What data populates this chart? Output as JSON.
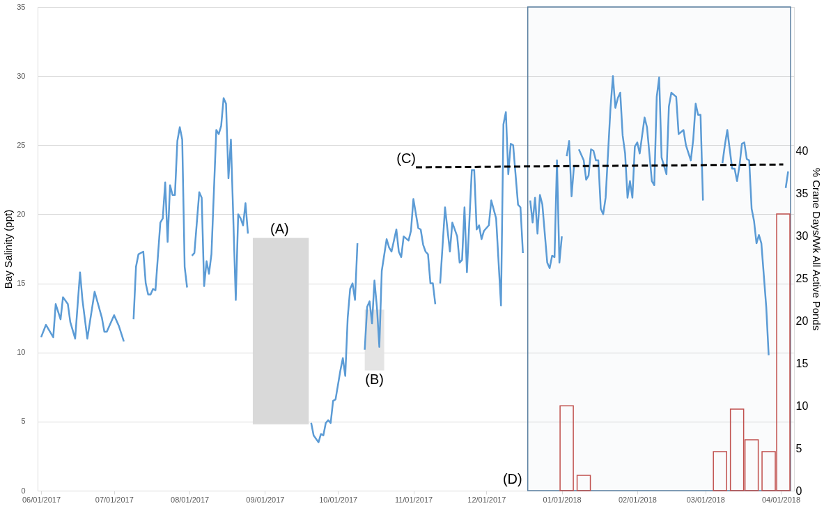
{
  "chart_data": {
    "type": "line",
    "ylabel": "Bay Salinity (ppt)",
    "y2label": "% Crane Days/Wk All Active Ponds",
    "xlim": [
      "2017-06-01",
      "2018-04-05"
    ],
    "xticks": [
      {
        "value": "2017-06-01",
        "label": "06/01/2017"
      },
      {
        "value": "2017-07-01",
        "label": "07/01/2017"
      },
      {
        "value": "2017-08-01",
        "label": "08/01/2017"
      },
      {
        "value": "2017-09-01",
        "label": "09/01/2017"
      },
      {
        "value": "2017-10-01",
        "label": "10/01/2017"
      },
      {
        "value": "2017-11-01",
        "label": "11/01/2017"
      },
      {
        "value": "2017-12-01",
        "label": "12/01/2017"
      },
      {
        "value": "2018-01-01",
        "label": "01/01/2018"
      },
      {
        "value": "2018-02-01",
        "label": "02/01/2018"
      },
      {
        "value": "2018-03-01",
        "label": "03/01/2018"
      },
      {
        "value": "2018-04-01",
        "label": "04/01/2018"
      }
    ],
    "ylim": [
      0,
      35
    ],
    "yticks": [
      0,
      5,
      10,
      15,
      20,
      25,
      30,
      35
    ],
    "y2lim": [
      0,
      57
    ],
    "y2ticks": [
      0,
      5,
      10,
      15,
      20,
      25,
      30,
      35,
      40
    ],
    "grid": "y",
    "series": [
      {
        "type": "line",
        "color": "#d9d9d9",
        "x": [
          "2017-08-27",
          "2017-09-19"
        ],
        "values": [
          null,
          null
        ],
        "lower": [
          4.8,
          4.8
        ],
        "upper": [
          18.3,
          18.3
        ]
      },
      {
        "type": "line",
        "color": "#e4e4e4",
        "x": [
          "2017-10-12",
          "2017-10-20"
        ],
        "values": [
          null,
          null
        ],
        "lower": [
          8.7,
          8.7
        ],
        "upper": [
          13.1,
          13.1
        ]
      },
      {
        "color": "#5b9bd5",
        "x": [
          "2017-06-01",
          "2017-06-03",
          "2017-06-06",
          "2017-06-07",
          "2017-06-09",
          "2017-06-10",
          "2017-06-12",
          "2017-06-13",
          "2017-06-15",
          "2017-06-17",
          "2017-06-18",
          "2017-06-20",
          "2017-06-23",
          "2017-06-26",
          "2017-06-27",
          "2017-06-28",
          "2017-07-01",
          "2017-07-03",
          "2017-07-05",
          "2017-07-07",
          "2017-07-09",
          "2017-07-10",
          "2017-07-11",
          "2017-07-13",
          "2017-07-14",
          "2017-07-15",
          "2017-07-16",
          "2017-07-17",
          "2017-07-18",
          "2017-07-20",
          "2017-07-21",
          "2017-07-22",
          "2017-07-23",
          "2017-07-24",
          "2017-07-25",
          "2017-07-26",
          "2017-07-27",
          "2017-07-28",
          "2017-07-29",
          "2017-07-30",
          "2017-07-31",
          "2017-08-01",
          "2017-08-02",
          "2017-08-03",
          "2017-08-05",
          "2017-08-06",
          "2017-08-07",
          "2017-08-08",
          "2017-08-09",
          "2017-08-10",
          "2017-08-12",
          "2017-08-13",
          "2017-08-14",
          "2017-08-15",
          "2017-08-16",
          "2017-08-17",
          "2017-08-18",
          "2017-08-20",
          "2017-08-21",
          "2017-08-22",
          "2017-08-23",
          "2017-08-24",
          "2017-08-25",
          "2017-09-01",
          "2017-09-20",
          "2017-09-21",
          "2017-09-23",
          "2017-09-24",
          "2017-09-25",
          "2017-09-26",
          "2017-09-27",
          "2017-09-28",
          "2017-09-29",
          "2017-09-30",
          "2017-10-02",
          "2017-10-03",
          "2017-10-04",
          "2017-10-05",
          "2017-10-06",
          "2017-10-07",
          "2017-10-08",
          "2017-10-09",
          "2017-10-10",
          "2017-10-12",
          "2017-10-13",
          "2017-10-14",
          "2017-10-15",
          "2017-10-16",
          "2017-10-17",
          "2017-10-18",
          "2017-10-19",
          "2017-10-21",
          "2017-10-22",
          "2017-10-23",
          "2017-10-25",
          "2017-10-26",
          "2017-10-27",
          "2017-10-28",
          "2017-10-30",
          "2017-10-31",
          "2017-11-01",
          "2017-11-03",
          "2017-11-04",
          "2017-11-05",
          "2017-11-06",
          "2017-11-07",
          "2017-11-08",
          "2017-11-09",
          "2017-11-10",
          "2017-11-11",
          "2017-11-12",
          "2017-11-14",
          "2017-11-16",
          "2017-11-17",
          "2017-11-19",
          "2017-11-20",
          "2017-11-21",
          "2017-11-22",
          "2017-11-23",
          "2017-11-25",
          "2017-11-26",
          "2017-11-27",
          "2017-11-28",
          "2017-11-29",
          "2017-11-30",
          "2017-12-02",
          "2017-12-03",
          "2017-12-05",
          "2017-12-07",
          "2017-12-08",
          "2017-12-09",
          "2017-12-10",
          "2017-12-11",
          "2017-12-12",
          "2017-12-14",
          "2017-12-15",
          "2017-12-16",
          "2017-12-17",
          "2017-12-19",
          "2017-12-20",
          "2017-12-21",
          "2017-12-22",
          "2017-12-23",
          "2017-12-24",
          "2017-12-26",
          "2017-12-27",
          "2017-12-28",
          "2017-12-29",
          "2017-12-30",
          "2017-12-31",
          "2018-01-01",
          "2018-01-02",
          "2018-01-03",
          "2018-01-04",
          "2018-01-05",
          "2018-01-06",
          "2018-01-07",
          "2018-01-08",
          "2018-01-10",
          "2018-01-11",
          "2018-01-12",
          "2018-01-13",
          "2018-01-14",
          "2018-01-15",
          "2018-01-16",
          "2018-01-17",
          "2018-01-18",
          "2018-01-19",
          "2018-01-21",
          "2018-01-22",
          "2018-01-23",
          "2018-01-24",
          "2018-01-25",
          "2018-01-26",
          "2018-01-27",
          "2018-01-28",
          "2018-01-29",
          "2018-01-30",
          "2018-01-31",
          "2018-02-01",
          "2018-02-02",
          "2018-02-04",
          "2018-02-05",
          "2018-02-07",
          "2018-02-08",
          "2018-02-09",
          "2018-02-10",
          "2018-02-11",
          "2018-02-13",
          "2018-02-14",
          "2018-02-15",
          "2018-02-17",
          "2018-02-18",
          "2018-02-20",
          "2018-02-21",
          "2018-02-23",
          "2018-02-24",
          "2018-02-25",
          "2018-02-26",
          "2018-02-27",
          "2018-02-28",
          "2018-03-04",
          "2018-03-08",
          "2018-03-09",
          "2018-03-10",
          "2018-03-12",
          "2018-03-13",
          "2018-03-14",
          "2018-03-15",
          "2018-03-16",
          "2018-03-17",
          "2018-03-18",
          "2018-03-19",
          "2018-03-20",
          "2018-03-21",
          "2018-03-22",
          "2018-03-23",
          "2018-03-24",
          "2018-03-26",
          "2018-03-27",
          "2018-03-30",
          "2018-04-03",
          "2018-04-04"
        ],
        "values": [
          11.1,
          12.0,
          11.1,
          13.5,
          12.4,
          14.0,
          13.5,
          12.2,
          11.0,
          15.8,
          13.8,
          11.0,
          14.4,
          12.5,
          11.5,
          11.5,
          12.7,
          11.9,
          10.8,
          null,
          12.4,
          16.2,
          17.1,
          17.3,
          15.0,
          14.2,
          14.2,
          14.6,
          14.5,
          19.4,
          19.7,
          22.3,
          18.0,
          22.1,
          21.4,
          21.4,
          25.3,
          26.3,
          25.4,
          16.2,
          14.7,
          null,
          17.0,
          17.2,
          21.6,
          21.2,
          14.8,
          16.6,
          15.7,
          17.1,
          26.1,
          25.8,
          26.4,
          28.4,
          28.0,
          22.6,
          25.4,
          13.8,
          20.0,
          19.7,
          19.2,
          20.8,
          18.6,
          null,
          4.9,
          4.0,
          3.5,
          4.1,
          4.0,
          4.9,
          5.1,
          4.9,
          6.5,
          6.6,
          8.7,
          9.6,
          8.3,
          12.5,
          14.6,
          15.0,
          13.8,
          17.9,
          null,
          10.2,
          13.3,
          13.7,
          12.1,
          15.2,
          13.3,
          10.4,
          15.9,
          18.2,
          17.6,
          17.3,
          18.9,
          17.3,
          16.9,
          18.4,
          18.1,
          18.8,
          21.1,
          19.0,
          18.9,
          17.8,
          17.3,
          17.1,
          15.0,
          15.0,
          13.5,
          null,
          15.0,
          20.5,
          17.3,
          19.4,
          18.4,
          16.5,
          16.7,
          20.5,
          15.8,
          23.2,
          23.2,
          18.9,
          19.2,
          18.2,
          18.8,
          19.2,
          21.0,
          19.7,
          13.4,
          26.5,
          27.4,
          22.9,
          25.1,
          25.0,
          20.7,
          20.5,
          17.2,
          null,
          21.0,
          19.4,
          21.2,
          18.6,
          21.4,
          20.7,
          16.5,
          16.1,
          17.0,
          16.9,
          23.9,
          16.5,
          18.4,
          null,
          24.2,
          25.3,
          21.3,
          23.5,
          null,
          24.7,
          23.9,
          22.5,
          22.8,
          24.7,
          24.6,
          23.9,
          23.9,
          20.4,
          20.0,
          21.2,
          27.7,
          30.0,
          27.7,
          28.4,
          28.8,
          25.7,
          24.4,
          21.2,
          22.4,
          21.2,
          24.9,
          25.2,
          24.4,
          27.0,
          26.3,
          22.4,
          22.1,
          28.5,
          29.9,
          24.1,
          22.9,
          27.8,
          28.8,
          28.5,
          25.8,
          26.1,
          25.0,
          23.9,
          25.4,
          28.0,
          27.2,
          27.2,
          21.0,
          null,
          23.7,
          25.0,
          26.1,
          23.3,
          23.3,
          22.4,
          23.5,
          25.1,
          25.2,
          24.0,
          23.9,
          20.4,
          19.5,
          17.9,
          18.5,
          17.9,
          13.3,
          9.8,
          null,
          21.9,
          23.1
        ]
      },
      {
        "type": "line",
        "color": "#000000",
        "line_style": "dashed",
        "x": [
          "2017-11-02",
          "2018-04-02"
        ],
        "values": [
          23.4,
          23.6
        ]
      },
      {
        "type": "bar",
        "axis": "y2",
        "color": "#c0504d",
        "x": [
          "2018-01-03",
          "2018-01-10",
          "2018-03-07",
          "2018-03-14",
          "2018-03-20",
          "2018-03-27",
          "2018-04-02"
        ],
        "values": [
          10,
          1.8,
          4.6,
          9.6,
          6,
          4.6,
          32.6
        ]
      }
    ],
    "bands": [
      {
        "axis": "x",
        "from": "2017-12-18",
        "to": "2018-04-05",
        "label": "(D)",
        "color": "#5a7fa0"
      }
    ],
    "annotations": [
      {
        "text": "(A)",
        "x": "2017-09-07",
        "y": 18.3
      },
      {
        "text": "(B)",
        "x": "2017-10-16",
        "y": 8.7
      },
      {
        "text": "(C)",
        "x": "2017-11-02",
        "y": 23.4
      }
    ]
  }
}
